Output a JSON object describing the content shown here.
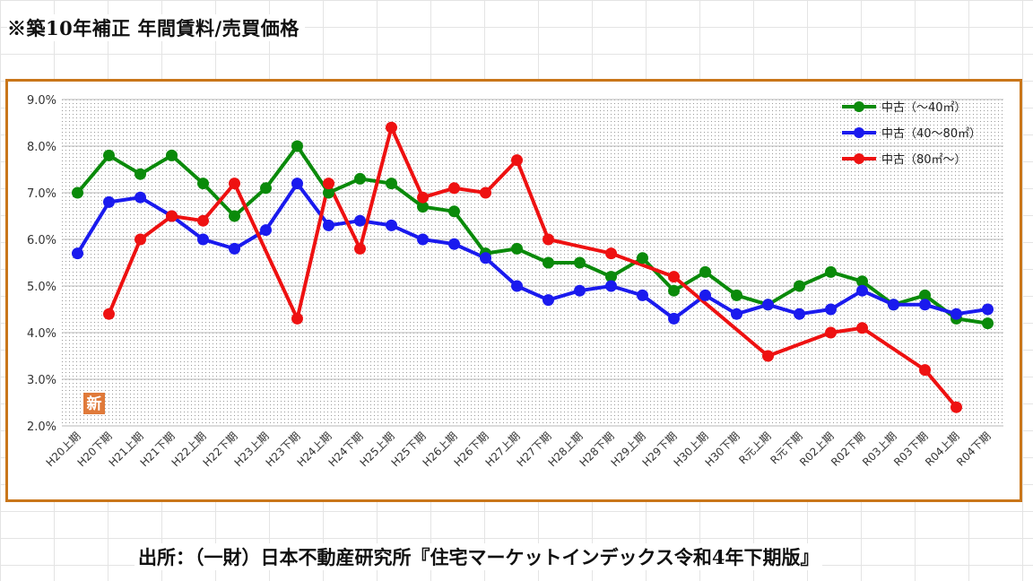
{
  "title": "※築10年補正 年間賃料/売買価格",
  "source": "出所：（一財）日本不動産研究所『住宅マーケットインデックス令和4年下期版』",
  "badge": "新",
  "colors": {
    "frame": "#c9761a",
    "green": "#0a8a0a",
    "blue": "#1a1aee",
    "red": "#ee1111",
    "badge": "#e07a3a"
  },
  "chart_data": {
    "type": "line",
    "title": "",
    "xlabel": "",
    "ylabel": "",
    "ylim": [
      2.0,
      9.0
    ],
    "yticks": [
      "2.0%",
      "3.0%",
      "4.0%",
      "5.0%",
      "6.0%",
      "7.0%",
      "8.0%",
      "9.0%"
    ],
    "grid": true,
    "legend": "top-right",
    "categories": [
      "H20上期",
      "H20下期",
      "H21上期",
      "H21下期",
      "H22上期",
      "H22下期",
      "H23上期",
      "H23下期",
      "H24上期",
      "H24下期",
      "H25上期",
      "H25下期",
      "H26上期",
      "H26下期",
      "H27上期",
      "H27下期",
      "H28上期",
      "H28下期",
      "H29上期",
      "H29下期",
      "H30上期",
      "H30下期",
      "R元上期",
      "R元下期",
      "R02上期",
      "R02下期",
      "R03上期",
      "R03下期",
      "R04上期",
      "R04下期"
    ],
    "series": [
      {
        "name": "中古（～40㎡）",
        "color": "#0a8a0a",
        "values": [
          7.0,
          7.8,
          7.4,
          7.8,
          7.2,
          6.5,
          7.1,
          8.0,
          7.0,
          7.3,
          7.2,
          6.7,
          6.6,
          5.7,
          5.8,
          5.5,
          5.5,
          5.2,
          5.6,
          4.9,
          5.3,
          4.8,
          4.6,
          5.0,
          5.3,
          5.1,
          4.6,
          4.8,
          4.3,
          4.2
        ]
      },
      {
        "name": "中古（40～80㎡）",
        "color": "#1a1aee",
        "values": [
          5.7,
          6.8,
          6.9,
          6.5,
          6.0,
          5.8,
          6.2,
          7.2,
          6.3,
          6.4,
          6.3,
          6.0,
          5.9,
          5.6,
          5.0,
          4.7,
          4.9,
          5.0,
          4.8,
          4.3,
          4.8,
          4.4,
          4.6,
          4.4,
          4.5,
          4.9,
          4.6,
          4.6,
          4.4,
          4.5
        ]
      },
      {
        "name": "中古（80㎡～）",
        "color": "#ee1111",
        "values": [
          null,
          4.4,
          6.0,
          6.5,
          6.4,
          7.2,
          null,
          4.3,
          7.2,
          5.8,
          8.4,
          6.9,
          7.1,
          7.0,
          7.7,
          6.0,
          null,
          5.7,
          null,
          5.2,
          null,
          null,
          3.5,
          null,
          4.0,
          4.1,
          null,
          3.2,
          2.4,
          null
        ]
      }
    ]
  }
}
